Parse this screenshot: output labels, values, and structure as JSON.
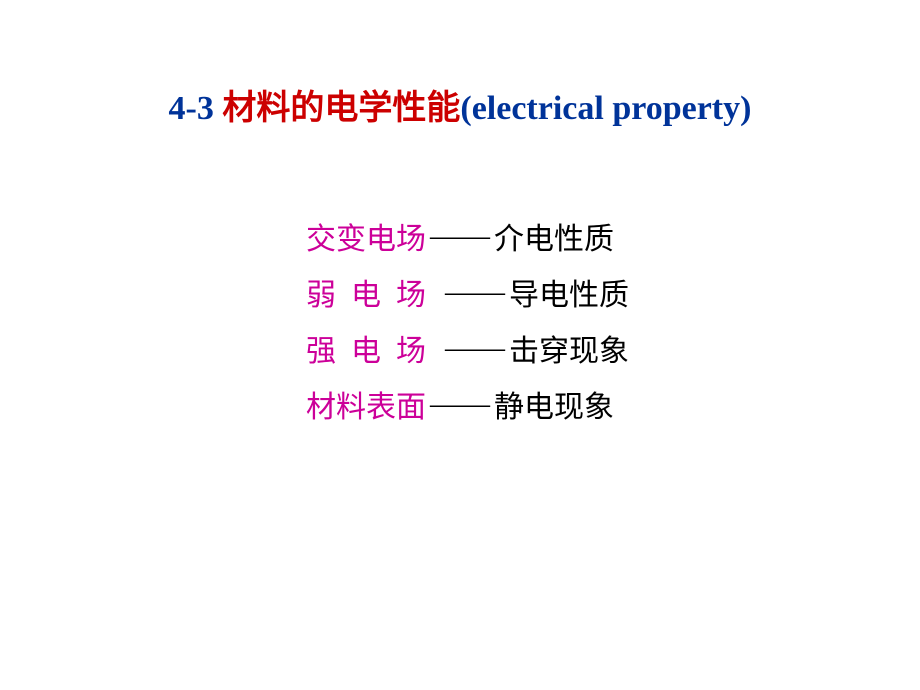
{
  "title": {
    "prefix": "4-3 ",
    "main": "材料的电学性能",
    "suffix": "(electrical property)",
    "fontsize": 34,
    "prefix_color": "#003399",
    "main_color": "#cc0000",
    "suffix_color": "#003399"
  },
  "content": {
    "fontsize": 30,
    "term_color": "#cc0099",
    "desc_color": "#000000",
    "dash": "——",
    "lines": [
      {
        "term": "交变电场",
        "desc": "介电性质",
        "term_len": 4
      },
      {
        "term": "弱电场",
        "desc": "导电性质",
        "term_len": 3
      },
      {
        "term": "强电场",
        "desc": "击穿现象",
        "term_len": 3
      },
      {
        "term": "材料表面",
        "desc": "静电现象",
        "term_len": 4
      }
    ]
  },
  "background_color": "#ffffff",
  "slide_width": 920,
  "slide_height": 690
}
